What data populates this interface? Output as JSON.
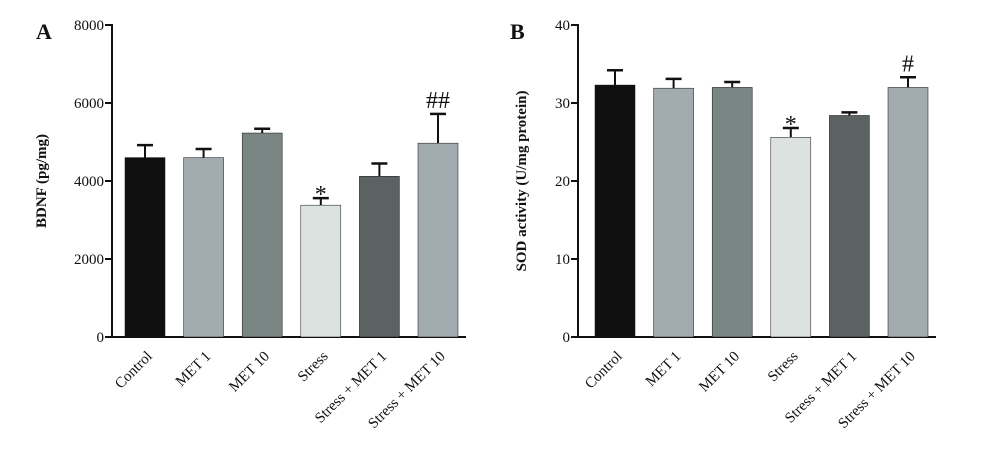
{
  "chart_data": [
    {
      "type": "bar",
      "panel_label": "A",
      "ylabel": "BDNF (pg/mg)",
      "ylim": [
        0,
        8000
      ],
      "yticks": [
        "0",
        "2000",
        "4000",
        "6000",
        "8000"
      ],
      "ytick_values": [
        0,
        2000,
        4000,
        6000,
        8000
      ],
      "categories": [
        "Control",
        "MET 1",
        "MET 10",
        "Stress",
        "Stress + MET 1",
        "Stress + MET 10"
      ],
      "values": [
        4600,
        4600,
        5230,
        3380,
        4120,
        4970
      ],
      "errors": [
        320,
        220,
        110,
        180,
        330,
        750
      ],
      "annotations": [
        "",
        "",
        "",
        "*",
        "",
        "##"
      ],
      "colors": [
        "#0f0f0f",
        "#a2acb0",
        "#7a8683",
        "#dce2df",
        "#5a6262",
        "#a2acb0"
      ]
    },
    {
      "type": "bar",
      "panel_label": "B",
      "ylabel": "SOD activity (U/mg protein)",
      "ylim": [
        0,
        40
      ],
      "yticks": [
        "0",
        "10",
        "20",
        "30",
        "40"
      ],
      "ytick_values": [
        0,
        10,
        20,
        30,
        40
      ],
      "categories": [
        "Control",
        "MET 1",
        "MET 10",
        "Stress",
        "Stress + MET 1",
        "Stress + MET 10"
      ],
      "values": [
        32.3,
        31.9,
        32.0,
        25.6,
        28.4,
        32.0
      ],
      "errors": [
        1.9,
        1.2,
        0.7,
        1.2,
        0.4,
        1.3
      ],
      "annotations": [
        "",
        "",
        "",
        "*",
        "",
        "#"
      ],
      "colors": [
        "#0f0f0f",
        "#a2acb0",
        "#7a8683",
        "#dce2df",
        "#5a6262",
        "#a2acb0"
      ]
    }
  ]
}
